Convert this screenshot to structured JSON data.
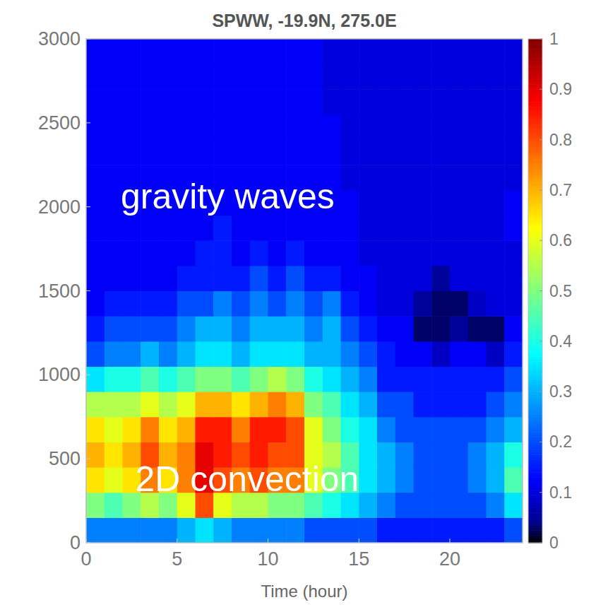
{
  "chart_data": {
    "type": "heatmap",
    "title": "SPWW, -19.9N, 275.0E",
    "x_label": "Time (hour)",
    "xlim": [
      0,
      24
    ],
    "ylim": [
      0,
      3000
    ],
    "xticks": [
      0,
      5,
      10,
      15,
      20
    ],
    "yticks": [
      0,
      500,
      1000,
      1500,
      2000,
      2500,
      3000
    ],
    "x_bins": [
      0,
      1,
      2,
      3,
      4,
      5,
      6,
      7,
      8,
      9,
      10,
      11,
      12,
      13,
      14,
      15,
      16,
      17,
      18,
      19,
      20,
      21,
      22,
      23,
      24
    ],
    "y_bins": [
      0,
      150,
      300,
      450,
      600,
      750,
      900,
      1050,
      1200,
      1350,
      1500,
      1650,
      1800,
      1950,
      2100,
      2250,
      2400,
      2550,
      2700,
      2850,
      3000
    ],
    "z": [
      [
        0.25,
        0.25,
        0.25,
        0.25,
        0.25,
        0.3,
        0.35,
        0.3,
        0.25,
        0.25,
        0.25,
        0.25,
        0.2,
        0.2,
        0.2,
        0.2,
        0.15,
        0.15,
        0.15,
        0.15,
        0.15,
        0.15,
        0.15,
        0.2
      ],
      [
        0.5,
        0.45,
        0.5,
        0.55,
        0.5,
        0.6,
        0.8,
        0.6,
        0.55,
        0.55,
        0.5,
        0.5,
        0.45,
        0.4,
        0.35,
        0.3,
        0.25,
        0.2,
        0.2,
        0.2,
        0.2,
        0.2,
        0.25,
        0.35
      ],
      [
        0.65,
        0.6,
        0.65,
        0.75,
        0.65,
        0.75,
        0.9,
        0.8,
        0.75,
        0.8,
        0.75,
        0.75,
        0.6,
        0.5,
        0.45,
        0.35,
        0.3,
        0.25,
        0.2,
        0.2,
        0.2,
        0.25,
        0.3,
        0.45
      ],
      [
        0.7,
        0.65,
        0.7,
        0.8,
        0.7,
        0.75,
        0.9,
        0.85,
        0.8,
        0.85,
        0.8,
        0.8,
        0.6,
        0.55,
        0.45,
        0.35,
        0.3,
        0.25,
        0.2,
        0.2,
        0.2,
        0.25,
        0.3,
        0.4
      ],
      [
        0.65,
        0.6,
        0.65,
        0.75,
        0.65,
        0.7,
        0.85,
        0.85,
        0.75,
        0.85,
        0.85,
        0.8,
        0.6,
        0.5,
        0.4,
        0.35,
        0.25,
        0.2,
        0.2,
        0.2,
        0.2,
        0.2,
        0.25,
        0.3
      ],
      [
        0.55,
        0.55,
        0.55,
        0.6,
        0.55,
        0.6,
        0.7,
        0.7,
        0.65,
        0.7,
        0.75,
        0.7,
        0.5,
        0.45,
        0.35,
        0.3,
        0.2,
        0.2,
        0.15,
        0.15,
        0.15,
        0.15,
        0.2,
        0.25
      ],
      [
        0.35,
        0.4,
        0.4,
        0.45,
        0.4,
        0.45,
        0.5,
        0.5,
        0.45,
        0.5,
        0.55,
        0.5,
        0.4,
        0.35,
        0.3,
        0.25,
        0.15,
        0.15,
        0.15,
        0.15,
        0.15,
        0.15,
        0.15,
        0.2
      ],
      [
        0.2,
        0.25,
        0.25,
        0.3,
        0.25,
        0.3,
        0.35,
        0.35,
        0.3,
        0.35,
        0.35,
        0.35,
        0.3,
        0.3,
        0.25,
        0.2,
        0.15,
        0.12,
        0.12,
        0.08,
        0.12,
        0.12,
        0.08,
        0.15
      ],
      [
        0.15,
        0.2,
        0.2,
        0.2,
        0.2,
        0.25,
        0.3,
        0.3,
        0.25,
        0.3,
        0.3,
        0.3,
        0.25,
        0.3,
        0.2,
        0.15,
        0.12,
        0.12,
        0.03,
        0.03,
        0.05,
        0.03,
        0.03,
        0.12
      ],
      [
        0.12,
        0.15,
        0.15,
        0.15,
        0.15,
        0.2,
        0.2,
        0.25,
        0.2,
        0.25,
        0.2,
        0.25,
        0.2,
        0.25,
        0.15,
        0.12,
        0.1,
        0.1,
        0.05,
        0.03,
        0.03,
        0.08,
        0.1,
        0.1
      ],
      [
        0.12,
        0.12,
        0.12,
        0.12,
        0.12,
        0.15,
        0.15,
        0.15,
        0.15,
        0.2,
        0.15,
        0.2,
        0.15,
        0.15,
        0.12,
        0.12,
        0.1,
        0.1,
        0.1,
        0.05,
        0.1,
        0.1,
        0.1,
        0.1
      ],
      [
        0.12,
        0.12,
        0.12,
        0.12,
        0.12,
        0.12,
        0.15,
        0.15,
        0.12,
        0.15,
        0.12,
        0.15,
        0.12,
        0.12,
        0.12,
        0.1,
        0.1,
        0.1,
        0.1,
        0.1,
        0.1,
        0.1,
        0.1,
        0.1
      ],
      [
        0.12,
        0.12,
        0.12,
        0.12,
        0.12,
        0.12,
        0.12,
        0.15,
        0.12,
        0.12,
        0.12,
        0.12,
        0.12,
        0.12,
        0.12,
        0.1,
        0.1,
        0.1,
        0.1,
        0.1,
        0.1,
        0.1,
        0.1,
        0.12
      ],
      [
        0.12,
        0.12,
        0.12,
        0.12,
        0.12,
        0.12,
        0.12,
        0.12,
        0.12,
        0.12,
        0.12,
        0.12,
        0.12,
        0.12,
        0.12,
        0.1,
        0.1,
        0.1,
        0.1,
        0.1,
        0.1,
        0.1,
        0.1,
        0.12
      ],
      [
        0.12,
        0.12,
        0.12,
        0.12,
        0.12,
        0.12,
        0.12,
        0.12,
        0.12,
        0.12,
        0.12,
        0.12,
        0.12,
        0.12,
        0.1,
        0.1,
        0.1,
        0.1,
        0.1,
        0.1,
        0.1,
        0.1,
        0.1,
        0.1
      ],
      [
        0.12,
        0.12,
        0.12,
        0.12,
        0.12,
        0.12,
        0.12,
        0.12,
        0.12,
        0.12,
        0.12,
        0.12,
        0.12,
        0.12,
        0.1,
        0.1,
        0.1,
        0.1,
        0.1,
        0.1,
        0.1,
        0.1,
        0.1,
        0.1
      ],
      [
        0.12,
        0.12,
        0.12,
        0.12,
        0.12,
        0.12,
        0.12,
        0.12,
        0.12,
        0.12,
        0.12,
        0.12,
        0.12,
        0.12,
        0.1,
        0.1,
        0.1,
        0.1,
        0.1,
        0.1,
        0.1,
        0.1,
        0.1,
        0.1
      ],
      [
        0.12,
        0.12,
        0.12,
        0.12,
        0.12,
        0.12,
        0.12,
        0.12,
        0.12,
        0.12,
        0.12,
        0.12,
        0.12,
        0.1,
        0.1,
        0.1,
        0.1,
        0.1,
        0.1,
        0.1,
        0.1,
        0.1,
        0.1,
        0.1
      ],
      [
        0.12,
        0.12,
        0.12,
        0.12,
        0.12,
        0.12,
        0.12,
        0.12,
        0.12,
        0.12,
        0.12,
        0.12,
        0.12,
        0.1,
        0.1,
        0.1,
        0.1,
        0.1,
        0.1,
        0.1,
        0.1,
        0.1,
        0.1,
        0.1
      ],
      [
        0.12,
        0.12,
        0.12,
        0.12,
        0.12,
        0.12,
        0.12,
        0.12,
        0.12,
        0.12,
        0.12,
        0.12,
        0.12,
        0.1,
        0.1,
        0.1,
        0.1,
        0.1,
        0.1,
        0.1,
        0.1,
        0.1,
        0.1,
        0.1
      ]
    ],
    "colorbar_range": [
      0,
      1
    ],
    "colorbar_ticks": [
      0,
      0.1,
      0.2,
      0.3,
      0.4,
      0.5,
      0.6,
      0.7,
      0.8,
      0.9,
      1
    ],
    "annotations": [
      {
        "text": "gravity waves",
        "x": 1.9,
        "y": 1990
      },
      {
        "text": "2D convection",
        "x": 2.7,
        "y": 307
      }
    ]
  }
}
